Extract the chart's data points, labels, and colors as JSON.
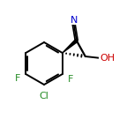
{
  "background_color": "#ffffff",
  "bond_color": "#000000",
  "atom_colors": {
    "N": "#0000cd",
    "F": "#228B22",
    "Cl": "#228B22",
    "O": "#cc0000",
    "C": "#000000"
  },
  "figsize": [
    1.52,
    1.52
  ],
  "dpi": 100,
  "lw": 1.4
}
